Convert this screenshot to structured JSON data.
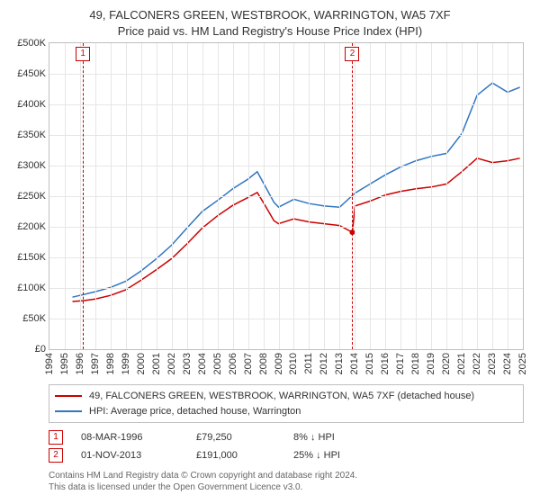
{
  "title": {
    "line1": "49, FALCONERS GREEN, WESTBROOK, WARRINGTON, WA5 7XF",
    "line2": "Price paid vs. HM Land Registry's House Price Index (HPI)",
    "fontsize": 13,
    "color": "#333333"
  },
  "chart": {
    "type": "line",
    "background_color": "#ffffff",
    "grid_color": "#e6e6e6",
    "border_color": "#bfbfbf",
    "line_width": 1.5,
    "x": {
      "min": 1994,
      "max": 2025,
      "tick_step": 1,
      "labels": [
        "1994",
        "1995",
        "1996",
        "1997",
        "1998",
        "1999",
        "2000",
        "2001",
        "2002",
        "2003",
        "2004",
        "2005",
        "2006",
        "2007",
        "2008",
        "2009",
        "2010",
        "2011",
        "2012",
        "2013",
        "2014",
        "2015",
        "2016",
        "2017",
        "2018",
        "2019",
        "2020",
        "2021",
        "2022",
        "2023",
        "2024",
        "2025"
      ],
      "label_fontsize": 11,
      "label_rotation_deg": -90
    },
    "y": {
      "min": 0,
      "max": 500000,
      "tick_step": 50000,
      "tick_format_prefix": "£",
      "labels": [
        "£0",
        "£50K",
        "£100K",
        "£150K",
        "£200K",
        "£250K",
        "£300K",
        "£350K",
        "£400K",
        "£450K",
        "£500K"
      ],
      "label_fontsize": 11
    },
    "series": [
      {
        "id": "price_paid",
        "label": "49, FALCONERS GREEN, WESTBROOK, WARRINGTON, WA5 7XF (detached house)",
        "color": "#cc0000",
        "x": [
          1995.5,
          1996.19,
          1997,
          1998,
          1999,
          2000,
          2001,
          2002,
          2003,
          2004,
          2005,
          2006,
          2007,
          2007.6,
          2008,
          2008.7,
          2009,
          2010,
          2011,
          2012,
          2013,
          2013.83,
          2014,
          2015,
          2016,
          2017,
          2018,
          2019,
          2020,
          2021,
          2022,
          2023,
          2024,
          2024.8
        ],
        "y": [
          78000,
          79250,
          82000,
          88000,
          97000,
          113000,
          130000,
          148000,
          172000,
          198000,
          218000,
          235000,
          248000,
          256000,
          240000,
          210000,
          205000,
          213000,
          208000,
          205000,
          202000,
          191000,
          234000,
          242000,
          252000,
          258000,
          262000,
          265000,
          270000,
          290000,
          312000,
          305000,
          308000,
          312000
        ]
      },
      {
        "id": "hpi",
        "label": "HPI: Average price, detached house, Warrington",
        "color": "#3076c1",
        "x": [
          1995.5,
          1996,
          1997,
          1998,
          1999,
          2000,
          2001,
          2002,
          2003,
          2004,
          2005,
          2006,
          2007,
          2007.6,
          2008,
          2008.7,
          2009,
          2010,
          2011,
          2012,
          2013,
          2014,
          2015,
          2016,
          2017,
          2018,
          2019,
          2020,
          2021,
          2022,
          2023,
          2024,
          2024.8
        ],
        "y": [
          85000,
          88000,
          94000,
          101000,
          111000,
          128000,
          148000,
          170000,
          198000,
          225000,
          243000,
          262000,
          278000,
          290000,
          272000,
          240000,
          232000,
          245000,
          238000,
          234000,
          232000,
          255000,
          270000,
          285000,
          298000,
          308000,
          315000,
          320000,
          352000,
          415000,
          435000,
          420000,
          428000
        ]
      }
    ],
    "markers": [
      {
        "id": 1,
        "x": 1996.19,
        "color": "#cc0000"
      },
      {
        "id": 2,
        "x": 2013.83,
        "color": "#cc0000"
      }
    ]
  },
  "legend": {
    "items": [
      {
        "color": "#cc0000",
        "label": "49, FALCONERS GREEN, WESTBROOK, WARRINGTON, WA5 7XF (detached house)"
      },
      {
        "color": "#3076c1",
        "label": "HPI: Average price, detached house, Warrington"
      }
    ],
    "fontsize": 11
  },
  "events": [
    {
      "badge": "1",
      "color": "#cc0000",
      "date": "08-MAR-1996",
      "price": "£79,250",
      "delta": "8% ↓ HPI"
    },
    {
      "badge": "2",
      "color": "#cc0000",
      "date": "01-NOV-2013",
      "price": "£191,000",
      "delta": "25% ↓ HPI"
    }
  ],
  "footer": {
    "line1": "Contains HM Land Registry data © Crown copyright and database right 2024.",
    "line2": "This data is licensed under the Open Government Licence v3.0.",
    "color": "#666666",
    "fontsize": 10
  }
}
